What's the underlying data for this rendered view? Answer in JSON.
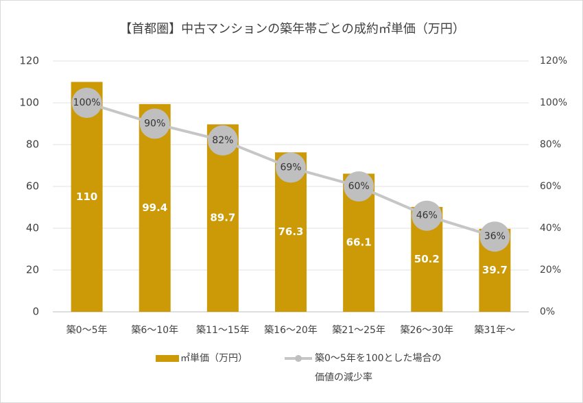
{
  "chart_data": {
    "type": "bar",
    "title": "【首都圏】中古マンションの築年帯ごとの成約㎡単価（万円）",
    "categories": [
      "築0〜5年",
      "築6〜10年",
      "築11〜15年",
      "築16〜20年",
      "築21〜25年",
      "築26〜30年",
      "築31年〜"
    ],
    "series": [
      {
        "name": "㎡単価（万円）",
        "type": "bar",
        "color": "#cc9a06",
        "values": [
          110,
          99.4,
          89.7,
          76.3,
          66.1,
          50.2,
          39.7
        ]
      },
      {
        "name": "築0〜5年を100とした場合の価値の減少率",
        "type": "line",
        "axis": "y2",
        "color": "#c6c6c6",
        "values": [
          100,
          90,
          82,
          69,
          60,
          46,
          36
        ],
        "value_labels": [
          "100%",
          "90%",
          "82%",
          "69%",
          "60%",
          "46%",
          "36%"
        ]
      }
    ],
    "ylim": [
      0,
      120
    ],
    "yticks": [
      0,
      20,
      40,
      60,
      80,
      100,
      120
    ],
    "y2lim": [
      0,
      120
    ],
    "y2ticks": [
      {
        "value": 0,
        "label": "0%"
      },
      {
        "value": 20,
        "label": "20%"
      },
      {
        "value": 40,
        "label": "40%"
      },
      {
        "value": 60,
        "label": "60%"
      },
      {
        "value": 80,
        "label": "80%"
      },
      {
        "value": 100,
        "label": "100%"
      },
      {
        "value": 120,
        "label": "120%"
      }
    ],
    "grid": true
  }
}
